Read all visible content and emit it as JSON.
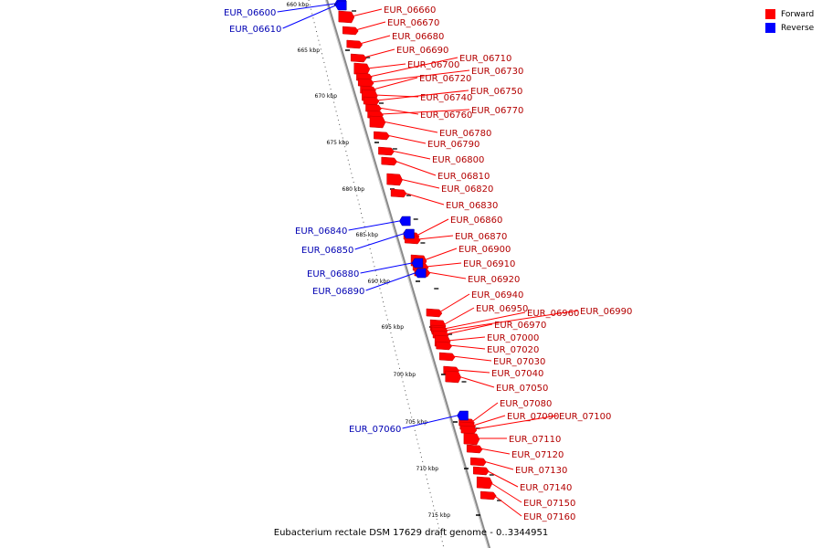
{
  "legend": [
    {
      "label": "Forward",
      "color": "#ff0000"
    },
    {
      "label": "Reverse",
      "color": "#0000ff"
    }
  ],
  "caption": "Eubacterium rectale DSM 17629 draft genome - 0..3344951",
  "colors": {
    "forward": "#ff0000",
    "reverse": "#0000ff",
    "axis": "#9a9a9a"
  },
  "ruler_ticks": [
    "660 kbp",
    "665 kbp",
    "670 kbp",
    "675 kbp",
    "680 kbp",
    "685 kbp",
    "690 kbp",
    "695 kbp",
    "700 kbp",
    "705 kbp",
    "710 kbp",
    "715 kbp"
  ],
  "forward_genes": [
    "EUR_06660",
    "EUR_06670",
    "EUR_06680",
    "EUR_06690",
    "EUR_06700",
    "EUR_06710",
    "EUR_06730",
    "EUR_06720",
    "EUR_06740",
    "EUR_06750",
    "EUR_06760",
    "EUR_06770",
    "EUR_06780",
    "EUR_06790",
    "EUR_06800",
    "EUR_06810",
    "EUR_06820",
    "EUR_06830",
    "EUR_06860",
    "EUR_06870",
    "EUR_06900",
    "EUR_06910",
    "EUR_06920",
    "EUR_06940",
    "EUR_06950",
    "EUR_06960",
    "EUR_06990",
    "EUR_06970",
    "EUR_07000",
    "EUR_07020",
    "EUR_07030",
    "EUR_07040",
    "EUR_07050",
    "EUR_07080",
    "EUR_07090",
    "EUR_07100",
    "EUR_07110",
    "EUR_07120",
    "EUR_07130",
    "EUR_07140",
    "EUR_07150",
    "EUR_07160"
  ],
  "reverse_genes": [
    "EUR_06600",
    "EUR_06610",
    "EUR_06840",
    "EUR_06850",
    "EUR_06880",
    "EUR_06890",
    "EUR_07060"
  ]
}
